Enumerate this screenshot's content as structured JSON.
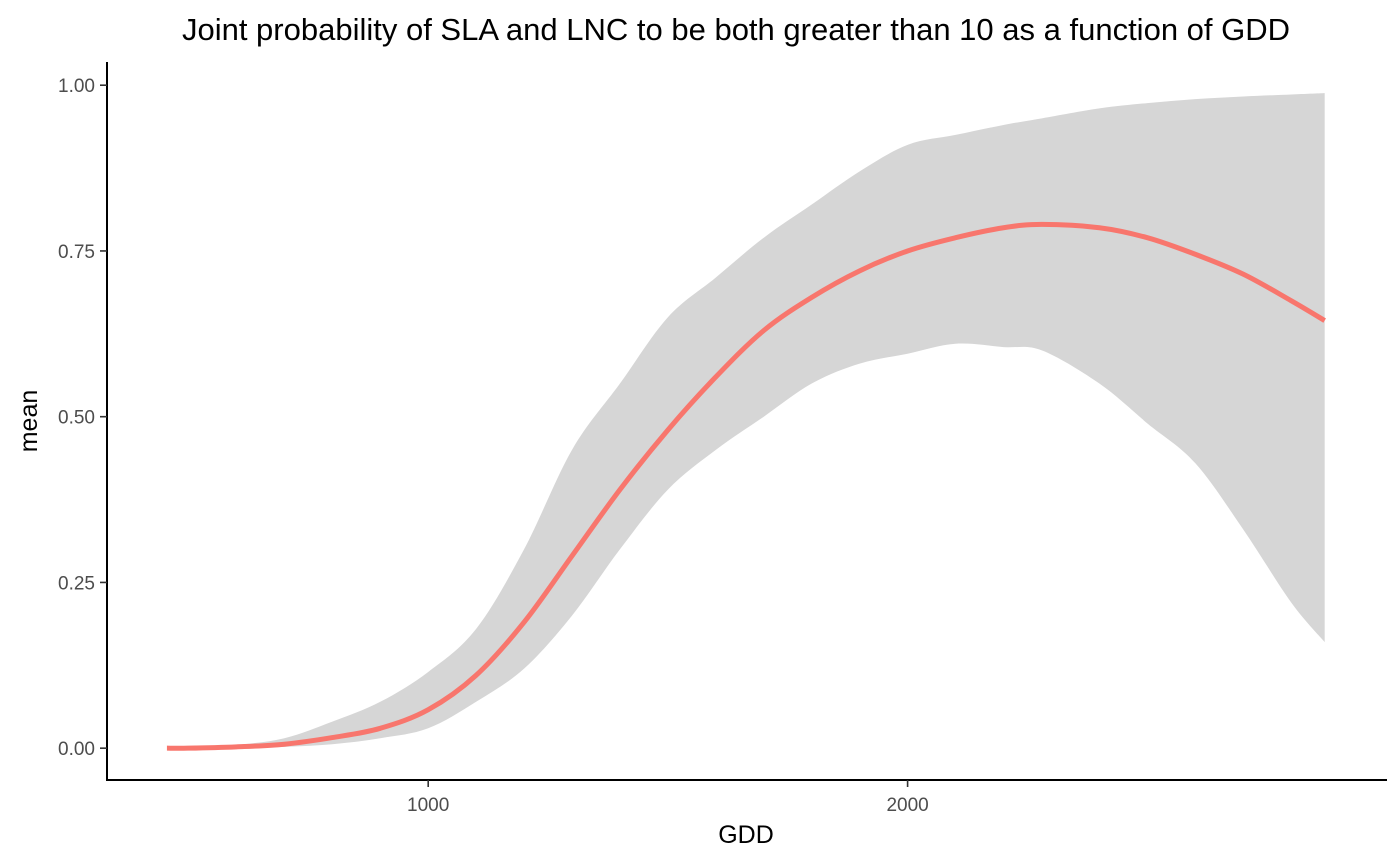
{
  "chart_data": {
    "type": "line",
    "title": "Joint probability of SLA and LNC to be both greater than 10 as a function of GDD",
    "xlabel": "GDD",
    "ylabel": "mean",
    "xlim": [
      330,
      3000
    ],
    "ylim": [
      -0.048,
      1.035
    ],
    "xticks": [
      {
        "value": 1000,
        "label": "1000"
      },
      {
        "value": 2000,
        "label": "2000"
      }
    ],
    "yticks": [
      {
        "value": 0.0,
        "label": "0.00"
      },
      {
        "value": 0.25,
        "label": "0.25"
      },
      {
        "value": 0.5,
        "label": "0.50"
      },
      {
        "value": 0.75,
        "label": "0.75"
      },
      {
        "value": 1.0,
        "label": "1.00"
      }
    ],
    "grid": false,
    "legend": "none",
    "line_color": "#F8766D",
    "band_color": "#D6D6D6",
    "series": [
      {
        "x": [
          455,
          500,
          600,
          700,
          800,
          900,
          1000,
          1100,
          1200,
          1300,
          1400,
          1500,
          1600,
          1700,
          1800,
          1900,
          2000,
          2100,
          2200,
          2280,
          2400,
          2500,
          2600,
          2700,
          2800,
          2870
        ],
        "values": [
          0.0,
          0.0,
          0.002,
          0.006,
          0.016,
          0.03,
          0.058,
          0.11,
          0.19,
          0.29,
          0.39,
          0.48,
          0.56,
          0.63,
          0.68,
          0.72,
          0.75,
          0.77,
          0.785,
          0.79,
          0.785,
          0.77,
          0.745,
          0.715,
          0.675,
          0.645
        ],
        "lower": [
          0.0,
          0.0,
          0.0,
          0.002,
          0.006,
          0.015,
          0.03,
          0.07,
          0.12,
          0.2,
          0.3,
          0.39,
          0.45,
          0.5,
          0.55,
          0.58,
          0.595,
          0.61,
          0.605,
          0.6,
          0.55,
          0.49,
          0.43,
          0.33,
          0.22,
          0.16
        ],
        "upper": [
          0.0,
          0.0,
          0.005,
          0.015,
          0.04,
          0.07,
          0.115,
          0.18,
          0.3,
          0.45,
          0.55,
          0.65,
          0.71,
          0.77,
          0.82,
          0.87,
          0.91,
          0.925,
          0.94,
          0.95,
          0.965,
          0.973,
          0.979,
          0.983,
          0.986,
          0.988
        ]
      }
    ]
  }
}
